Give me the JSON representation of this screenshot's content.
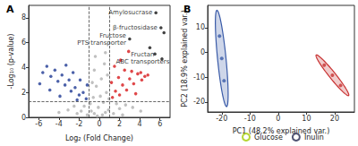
{
  "chart_data": [
    {
      "type": "scatter",
      "title": "A",
      "x_label": "Log₂ (Fold Change)",
      "y_label": "-Log₁₀ (p-value)",
      "marker": "circle",
      "grid": false,
      "xlim": [
        -7,
        7
      ],
      "xticks": [
        -6,
        -4,
        -2,
        0,
        2,
        4,
        6
      ],
      "ylim": [
        0,
        9
      ],
      "yticks": [
        0,
        2,
        4,
        6,
        8
      ],
      "reference_lines": {
        "x": [
          -1,
          1
        ],
        "y": [
          1.3
        ]
      },
      "series": [
        {
          "color": "#b0b0b0",
          "x": [
            -0.2,
            0.3,
            -0.5,
            0.6,
            -0.8,
            0.9,
            -1.2,
            1.4,
            -1.8,
            2.0,
            -2.5,
            2.6,
            -3.1,
            3.3,
            -0.1,
            0.4,
            -0.6,
            0.7,
            -0.3,
            0.2,
            -0.7,
            0.8,
            -0.5,
            0.5,
            0.1,
            -0.9,
            0.95,
            -1.5,
            1.7,
            -2.2,
            2.3,
            -0.4,
            0.6,
            -4.0,
            4.1
          ],
          "values": [
            0.1,
            0.2,
            0.3,
            0.4,
            0.5,
            0.6,
            0.2,
            0.3,
            0.5,
            0.7,
            0.9,
            1.0,
            0.6,
            0.8,
            0.8,
            1.2,
            1.6,
            2.0,
            2.5,
            3.1,
            2.8,
            3.4,
            3.8,
            4.3,
            1.7,
            1.1,
            1.5,
            0.9,
            1.1,
            0.3,
            0.2,
            4.9,
            5.2,
            0.4,
            0.5
          ]
        },
        {
          "color": "#1f3a93",
          "x": [
            -1.3,
            -1.6,
            -2.0,
            -2.4,
            -2.8,
            -3.0,
            -3.4,
            -3.7,
            -4.1,
            -4.4,
            -4.8,
            -5.2,
            -5.6,
            -1.9,
            -2.6,
            -3.3,
            -1.2,
            -4.9,
            -3.9,
            -2.2,
            -5.9
          ],
          "values": [
            1.5,
            2.0,
            1.8,
            2.4,
            2.1,
            3.0,
            2.6,
            3.4,
            2.9,
            3.8,
            3.3,
            4.1,
            3.6,
            3.0,
            3.6,
            4.2,
            2.6,
            2.2,
            1.7,
            1.4,
            2.7
          ]
        },
        {
          "color": "#d7191c",
          "x": [
            1.3,
            1.6,
            2.0,
            2.3,
            2.7,
            3.0,
            3.4,
            3.8,
            4.2,
            4.5,
            1.9,
            2.5,
            3.2,
            1.2,
            3.6,
            4.8,
            2.1,
            2.9,
            1.5,
            4.1
          ],
          "values": [
            1.6,
            2.1,
            1.8,
            2.6,
            2.2,
            3.1,
            2.7,
            3.5,
            3.0,
            3.3,
            3.2,
            3.8,
            3.7,
            2.8,
            1.9,
            3.4,
            4.6,
            5.3,
            4.1,
            3.6
          ]
        },
        {
          "color": "#111111",
          "x": [
            5.6,
            6.1,
            6.4,
            3.0,
            5.0,
            5.5,
            6.2
          ],
          "values": [
            8.4,
            7.2,
            6.8,
            6.3,
            5.6,
            5.1,
            4.7
          ]
        }
      ],
      "annotations": [
        {
          "text": "Amylosucrase",
          "x": 5.6,
          "y": 8.4
        },
        {
          "text": "β-fructosidase",
          "x": 6.1,
          "y": 7.2
        },
        {
          "text": "Fructose\nPTS transporter",
          "x": 3.0,
          "y": 6.3
        },
        {
          "text": "Fructan\nABC transporters",
          "x": 5.0,
          "y": 5.6
        }
      ]
    },
    {
      "type": "scatter",
      "title": "B",
      "x_label": "PC1 (48.2% explained var.)",
      "y_label": "PC2 (18.9% explained var.)",
      "marker": "circle",
      "grid": false,
      "legend": "bottom",
      "xlim": [
        -25,
        27
      ],
      "xticks": [
        -20,
        -10,
        0,
        10,
        20
      ],
      "ylim": [
        -24,
        19
      ],
      "yticks": [
        -20,
        -10,
        0,
        10
      ],
      "series": [
        {
          "name": "Glucose",
          "color": "#3a5ba8",
          "x": [
            -20.8,
            -20.0,
            -19.2
          ],
          "values": [
            6.6,
            -2.4,
            -11.4
          ],
          "ellipse": {
            "center": [
              -20,
              -2.4
            ],
            "radii": [
              19.5,
              1.5
            ],
            "angle": 95
          }
        },
        {
          "name": "Inulin",
          "color": "#c83232",
          "x": [
            16.3,
            19.2,
            22.1
          ],
          "values": [
            -5.1,
            -9.2,
            -13.3
          ],
          "ellipse": {
            "center": [
              19.2,
              -9.2
            ],
            "radii": [
              10,
              1.2
            ],
            "angle": -55
          }
        }
      ]
    }
  ]
}
